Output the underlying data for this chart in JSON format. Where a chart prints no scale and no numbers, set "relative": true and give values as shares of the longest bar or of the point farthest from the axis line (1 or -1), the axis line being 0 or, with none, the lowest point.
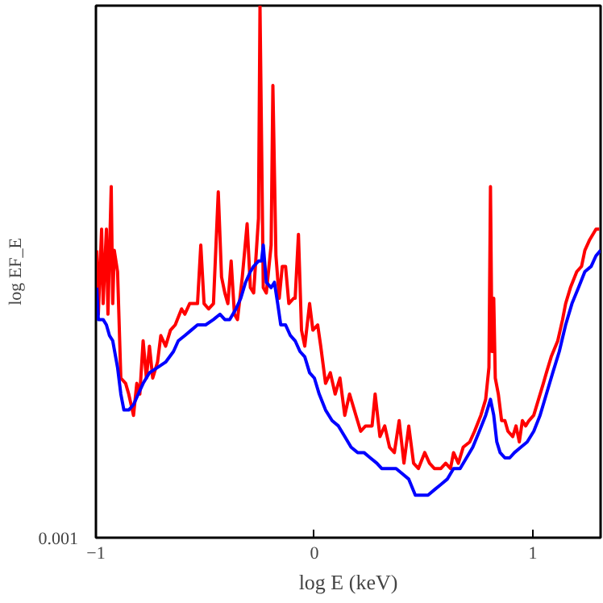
{
  "chart_data": {
    "type": "line",
    "relative": true,
    "xlabel": "log E (keV)",
    "ylabel": "log EF_E",
    "xlim": [
      -1,
      1.31
    ],
    "xticks": [
      {
        "value": -1,
        "label": "−1"
      },
      0,
      1
    ],
    "annotations": [
      "0.001"
    ],
    "series": [
      {
        "color": "#ff0000",
        "x": [
          -0.996,
          -0.989,
          -0.974,
          -0.967,
          -0.952,
          -0.945,
          -0.93,
          -0.923,
          -0.916,
          -0.901,
          -0.886,
          -0.864,
          -0.85,
          -0.828,
          -0.813,
          -0.799,
          -0.784,
          -0.769,
          -0.755,
          -0.74,
          -0.718,
          -0.703,
          -0.681,
          -0.659,
          -0.637,
          -0.608,
          -0.593,
          -0.571,
          -0.557,
          -0.535,
          -0.52,
          -0.505,
          -0.484,
          -0.462,
          -0.44,
          -0.425,
          -0.41,
          -0.396,
          -0.381,
          -0.366,
          -0.352,
          -0.33,
          -0.308,
          -0.293,
          -0.278,
          -0.256,
          -0.249,
          -0.234,
          -0.22,
          -0.198,
          -0.19,
          -0.176,
          -0.161,
          -0.147,
          -0.132,
          -0.117,
          -0.095,
          -0.088,
          -0.073,
          -0.059,
          -0.044,
          -0.022,
          -0.007,
          0.015,
          0.029,
          0.051,
          0.073,
          0.095,
          0.117,
          0.139,
          0.161,
          0.19,
          0.212,
          0.234,
          0.264,
          0.278,
          0.3,
          0.322,
          0.344,
          0.366,
          0.388,
          0.41,
          0.432,
          0.454,
          0.476,
          0.505,
          0.527,
          0.549,
          0.579,
          0.601,
          0.623,
          0.637,
          0.659,
          0.681,
          0.711,
          0.733,
          0.762,
          0.784,
          0.799,
          0.806,
          0.813,
          0.821,
          0.828,
          0.842,
          0.857,
          0.872,
          0.886,
          0.908,
          0.923,
          0.938,
          0.952,
          0.967,
          0.982,
          1.004,
          1.026,
          1.048,
          1.062,
          1.084,
          1.114,
          1.136,
          1.15,
          1.172,
          1.201,
          1.223,
          1.238,
          1.26,
          1.289,
          1.304
        ],
        "values": [
          0.54,
          0.42,
          0.58,
          0.44,
          0.58,
          0.42,
          0.66,
          0.44,
          0.54,
          0.5,
          0.3,
          0.29,
          0.27,
          0.23,
          0.29,
          0.27,
          0.37,
          0.3,
          0.36,
          0.3,
          0.33,
          0.38,
          0.36,
          0.39,
          0.4,
          0.43,
          0.42,
          0.44,
          0.44,
          0.44,
          0.55,
          0.44,
          0.43,
          0.44,
          0.65,
          0.49,
          0.46,
          0.44,
          0.52,
          0.42,
          0.41,
          0.49,
          0.59,
          0.47,
          0.46,
          0.6,
          1.0,
          0.47,
          0.46,
          0.55,
          0.85,
          0.53,
          0.45,
          0.51,
          0.51,
          0.44,
          0.45,
          0.45,
          0.57,
          0.39,
          0.36,
          0.44,
          0.39,
          0.4,
          0.36,
          0.29,
          0.31,
          0.27,
          0.3,
          0.23,
          0.27,
          0.23,
          0.2,
          0.21,
          0.21,
          0.27,
          0.19,
          0.21,
          0.17,
          0.16,
          0.22,
          0.14,
          0.21,
          0.14,
          0.13,
          0.16,
          0.14,
          0.13,
          0.13,
          0.14,
          0.13,
          0.16,
          0.14,
          0.17,
          0.18,
          0.2,
          0.23,
          0.26,
          0.32,
          0.66,
          0.35,
          0.45,
          0.3,
          0.27,
          0.22,
          0.22,
          0.2,
          0.19,
          0.21,
          0.18,
          0.22,
          0.21,
          0.22,
          0.23,
          0.26,
          0.29,
          0.31,
          0.34,
          0.37,
          0.41,
          0.44,
          0.47,
          0.5,
          0.51,
          0.54,
          0.56,
          0.58,
          0.58
        ]
      },
      {
        "color": "#0000ff",
        "x": [
          -0.996,
          -0.989,
          -0.967,
          -0.952,
          -0.938,
          -0.923,
          -0.901,
          -0.886,
          -0.872,
          -0.85,
          -0.828,
          -0.806,
          -0.784,
          -0.755,
          -0.718,
          -0.681,
          -0.645,
          -0.623,
          -0.593,
          -0.564,
          -0.535,
          -0.498,
          -0.462,
          -0.432,
          -0.41,
          -0.388,
          -0.359,
          -0.337,
          -0.315,
          -0.293,
          -0.278,
          -0.256,
          -0.242,
          -0.234,
          -0.22,
          -0.198,
          -0.183,
          -0.168,
          -0.154,
          -0.132,
          -0.11,
          -0.088,
          -0.066,
          -0.044,
          -0.022,
          0.0,
          0.022,
          0.051,
          0.081,
          0.11,
          0.139,
          0.168,
          0.198,
          0.227,
          0.256,
          0.286,
          0.308,
          0.344,
          0.374,
          0.403,
          0.432,
          0.462,
          0.491,
          0.52,
          0.549,
          0.579,
          0.608,
          0.637,
          0.667,
          0.696,
          0.725,
          0.755,
          0.784,
          0.806,
          0.821,
          0.835,
          0.85,
          0.872,
          0.894,
          0.916,
          0.945,
          0.974,
          1.004,
          1.033,
          1.062,
          1.091,
          1.121,
          1.15,
          1.179,
          1.209,
          1.238,
          1.267,
          1.289,
          1.31
        ],
        "values": [
          0.47,
          0.41,
          0.41,
          0.4,
          0.38,
          0.37,
          0.32,
          0.27,
          0.24,
          0.24,
          0.25,
          0.27,
          0.29,
          0.31,
          0.32,
          0.33,
          0.35,
          0.37,
          0.38,
          0.39,
          0.4,
          0.4,
          0.41,
          0.42,
          0.41,
          0.41,
          0.43,
          0.45,
          0.48,
          0.5,
          0.51,
          0.52,
          0.52,
          0.55,
          0.48,
          0.47,
          0.48,
          0.44,
          0.4,
          0.4,
          0.38,
          0.37,
          0.35,
          0.34,
          0.31,
          0.3,
          0.27,
          0.24,
          0.22,
          0.21,
          0.19,
          0.17,
          0.16,
          0.16,
          0.15,
          0.14,
          0.13,
          0.13,
          0.13,
          0.12,
          0.11,
          0.08,
          0.08,
          0.08,
          0.09,
          0.1,
          0.11,
          0.13,
          0.13,
          0.15,
          0.17,
          0.2,
          0.23,
          0.26,
          0.23,
          0.18,
          0.16,
          0.15,
          0.15,
          0.16,
          0.17,
          0.18,
          0.2,
          0.23,
          0.27,
          0.31,
          0.35,
          0.4,
          0.44,
          0.47,
          0.5,
          0.51,
          0.53,
          0.54
        ]
      }
    ]
  }
}
